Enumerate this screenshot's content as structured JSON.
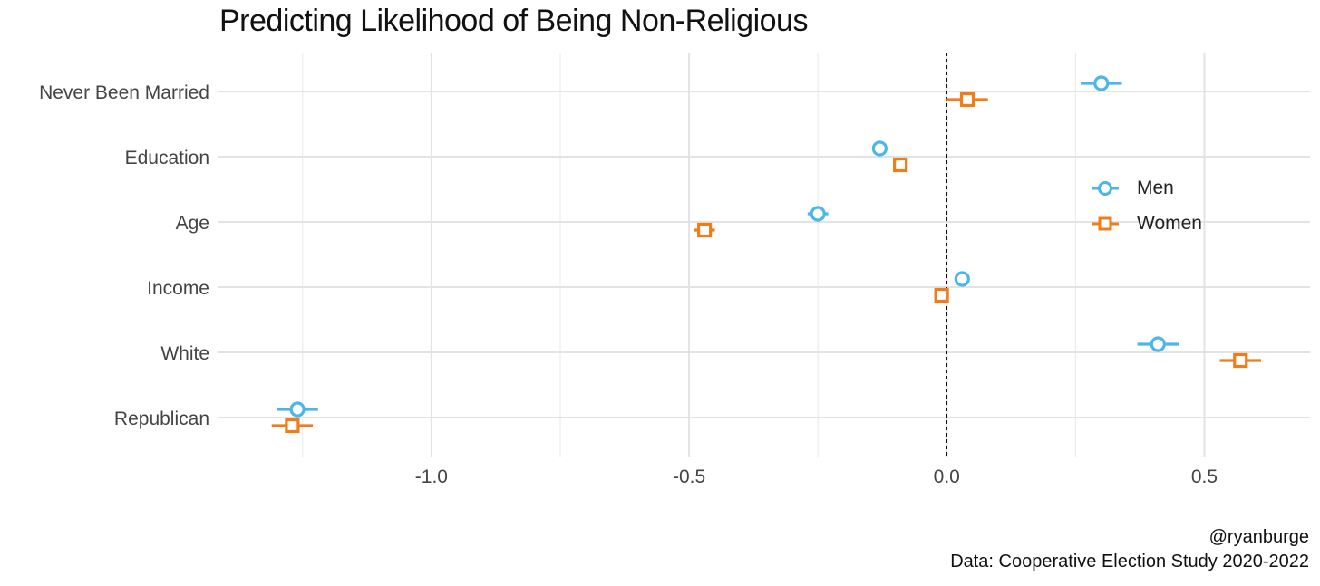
{
  "chart_data": {
    "type": "dot-errorbar",
    "title": "Predicting Likelihood of Being Non-Religious",
    "categories": [
      "Never Been Married",
      "Education",
      "Age",
      "Income",
      "White",
      "Republican"
    ],
    "series": [
      {
        "name": "Men",
        "color": "#4BB6E8",
        "marker": "circle",
        "values": [
          0.3,
          -0.13,
          -0.25,
          0.03,
          0.41,
          -1.26
        ],
        "ci_low": [
          0.26,
          -0.14,
          -0.27,
          0.02,
          0.37,
          -1.3
        ],
        "ci_high": [
          0.34,
          -0.12,
          -0.23,
          0.04,
          0.45,
          -1.22
        ]
      },
      {
        "name": "Women",
        "color": "#F07D1A",
        "marker": "square",
        "values": [
          0.04,
          -0.09,
          -0.47,
          -0.01,
          0.57,
          -1.27
        ],
        "ci_low": [
          0.0,
          -0.1,
          -0.49,
          -0.02,
          0.53,
          -1.31
        ],
        "ci_high": [
          0.08,
          -0.08,
          -0.45,
          0.0,
          0.61,
          -1.23
        ]
      }
    ],
    "x_ticks": [
      {
        "value": -1.0,
        "label": "-1.0"
      },
      {
        "value": -0.5,
        "label": "-0.5"
      },
      {
        "value": 0.0,
        "label": "0.0"
      },
      {
        "value": 0.5,
        "label": "0.5"
      }
    ],
    "xlim": [
      -1.415,
      0.705
    ],
    "reference_line": 0,
    "xlabel": "",
    "ylabel": "",
    "grid": true,
    "legend_position": "right"
  },
  "caption": {
    "line1": "@ryanburge",
    "line2": "Data: Cooperative Election Study 2020-2022"
  }
}
